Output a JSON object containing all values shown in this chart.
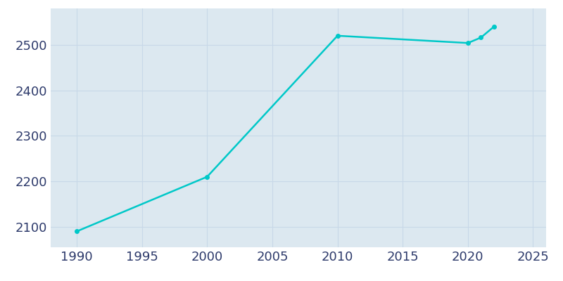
{
  "years": [
    1990,
    2000,
    2010,
    2020,
    2021,
    2022
  ],
  "populations": [
    2090,
    2210,
    2520,
    2504,
    2516,
    2540
  ],
  "line_color": "#00c8c8",
  "marker": "o",
  "marker_size": 4,
  "line_width": 1.8,
  "background_color": "#ffffff",
  "plot_background_color": "#dce8f0",
  "grid_color": "#c8d8e8",
  "xlim": [
    1988,
    2026
  ],
  "ylim": [
    2055,
    2580
  ],
  "xticks": [
    1990,
    1995,
    2000,
    2005,
    2010,
    2015,
    2020,
    2025
  ],
  "yticks": [
    2100,
    2200,
    2300,
    2400,
    2500
  ],
  "tick_color": "#2d3a6b",
  "tick_fontsize": 13
}
